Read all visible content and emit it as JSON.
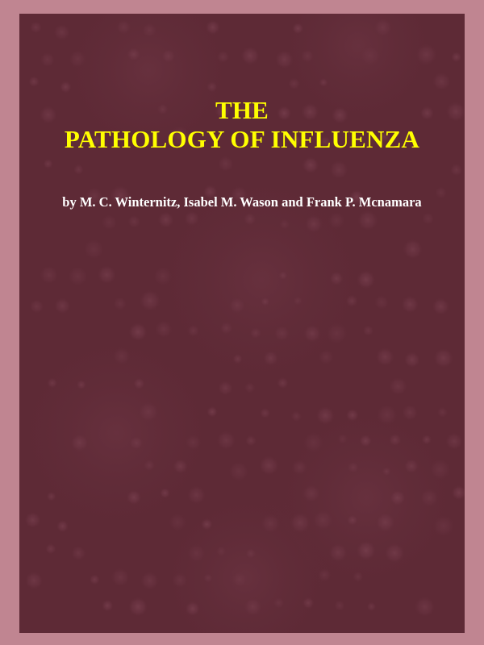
{
  "book": {
    "title_line_1": "THE",
    "title_line_2": "PATHOLOGY OF INFLUENZA",
    "authors": "by M. C. Winternitz, Isabel M. Wason and Frank P. Mcnamara"
  },
  "colors": {
    "frame": "#c08591",
    "cover_background": "#5e2a36",
    "title": "#ffff00",
    "authors": "#ffffff"
  }
}
